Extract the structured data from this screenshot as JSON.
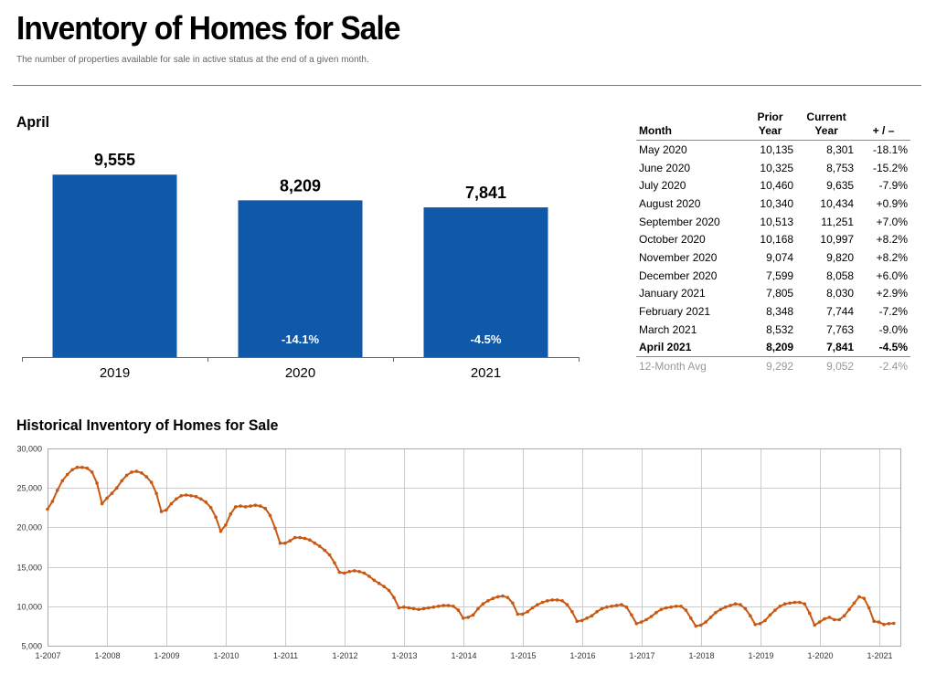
{
  "header": {
    "title": "Inventory of Homes for Sale",
    "subtitle": "The number of properties available for sale in active status at the end of a given month."
  },
  "colors": {
    "bar": "#1059a8",
    "line": "#c95813",
    "axis": "#666666",
    "grid": "#cccccc"
  },
  "bar_section": {
    "title": "April"
  },
  "history_section": {
    "title": "Historical Inventory of Homes for Sale"
  },
  "table": {
    "headers": {
      "month": "Month",
      "prior": [
        "Prior",
        "Year"
      ],
      "current": [
        "Current",
        "Year"
      ],
      "change": "+ / –"
    },
    "rows": [
      {
        "month": "May 2020",
        "prior": "10,135",
        "current": "8,301",
        "change": "-18.1%"
      },
      {
        "month": "June 2020",
        "prior": "10,325",
        "current": "8,753",
        "change": "-15.2%"
      },
      {
        "month": "July 2020",
        "prior": "10,460",
        "current": "9,635",
        "change": "-7.9%"
      },
      {
        "month": "August 2020",
        "prior": "10,340",
        "current": "10,434",
        "change": "+0.9%"
      },
      {
        "month": "September 2020",
        "prior": "10,513",
        "current": "11,251",
        "change": "+7.0%"
      },
      {
        "month": "October 2020",
        "prior": "10,168",
        "current": "10,997",
        "change": "+8.2%"
      },
      {
        "month": "November 2020",
        "prior": "9,074",
        "current": "9,820",
        "change": "+8.2%"
      },
      {
        "month": "December 2020",
        "prior": "7,599",
        "current": "8,058",
        "change": "+6.0%"
      },
      {
        "month": "January 2021",
        "prior": "7,805",
        "current": "8,030",
        "change": "+2.9%"
      },
      {
        "month": "February 2021",
        "prior": "8,348",
        "current": "7,744",
        "change": "-7.2%"
      },
      {
        "month": "March 2021",
        "prior": "8,532",
        "current": "7,763",
        "change": "-9.0%"
      },
      {
        "month": "April 2021",
        "prior": "8,209",
        "current": "7,841",
        "change": "-4.5%"
      }
    ],
    "highlight_row": "April 2021",
    "average": {
      "month": "12-Month Avg",
      "prior": "9,292",
      "current": "9,052",
      "change": "-2.4%"
    }
  },
  "chart_data": [
    {
      "type": "bar",
      "title": "April",
      "categories": [
        "2019",
        "2020",
        "2021"
      ],
      "values": [
        9555,
        8209,
        7841
      ],
      "value_labels": [
        "9,555",
        "8,209",
        "7,841"
      ],
      "change_labels": [
        "",
        "-14.1%",
        "-4.5%"
      ],
      "ylim": [
        0,
        11000
      ]
    },
    {
      "type": "line",
      "title": "Historical Inventory of Homes for Sale",
      "x_start": "2007-01",
      "x_ticks": [
        "1-2007",
        "1-2008",
        "1-2009",
        "1-2010",
        "1-2011",
        "1-2012",
        "1-2013",
        "1-2014",
        "1-2015",
        "1-2016",
        "1-2017",
        "1-2018",
        "1-2019",
        "1-2020",
        "1-2021"
      ],
      "y_ticks": [
        "5,000",
        "10,000",
        "15,000",
        "20,000",
        "25,000",
        "30,000"
      ],
      "ylim": [
        5000,
        30000
      ],
      "grid": true,
      "series": [
        {
          "values": [
            22300,
            23300,
            24700,
            25900,
            26700,
            27300,
            27600,
            27600,
            27500,
            27000,
            25600,
            23000,
            23700,
            24300,
            25000,
            25900,
            26600,
            27000,
            27100,
            26900,
            26400,
            25700,
            24300,
            22000,
            22200,
            23000,
            23600,
            24000,
            24100,
            24000,
            23900,
            23600,
            23200,
            22500,
            21300,
            19500,
            20300,
            21700,
            22600,
            22700,
            22600,
            22700,
            22800,
            22700,
            22400,
            21500,
            19900,
            18000,
            18000,
            18300,
            18700,
            18700,
            18600,
            18400,
            18000,
            17600,
            17100,
            16500,
            15500,
            14300,
            14200,
            14400,
            14500,
            14400,
            14200,
            13800,
            13300,
            12900,
            12500,
            12000,
            11100,
            9800,
            9900,
            9800,
            9700,
            9600,
            9700,
            9800,
            9900,
            10000,
            10100,
            10100,
            10000,
            9500,
            8500,
            8600,
            8900,
            9700,
            10300,
            10700,
            11000,
            11200,
            11300,
            11100,
            10400,
            9000,
            9000,
            9300,
            9800,
            10200,
            10500,
            10700,
            10800,
            10800,
            10700,
            10200,
            9300,
            8100,
            8200,
            8500,
            8800,
            9300,
            9700,
            9900,
            10000,
            10100,
            10200,
            9900,
            8900,
            7800,
            8000,
            8300,
            8700,
            9200,
            9600,
            9800,
            9900,
            10000,
            10000,
            9500,
            8500,
            7500,
            7600,
            8000,
            8600,
            9200,
            9600,
            9900,
            10100,
            10300,
            10200,
            9700,
            8800,
            7700,
            7800,
            8200,
            8900,
            9500,
            10000,
            10300,
            10400,
            10500,
            10500,
            10300,
            9100,
            7600,
            8000,
            8400,
            8600,
            8300,
            8300,
            8800,
            9600,
            10400,
            11200,
            11000,
            9800,
            8100,
            8000,
            7700,
            7800,
            7840
          ]
        }
      ]
    }
  ]
}
